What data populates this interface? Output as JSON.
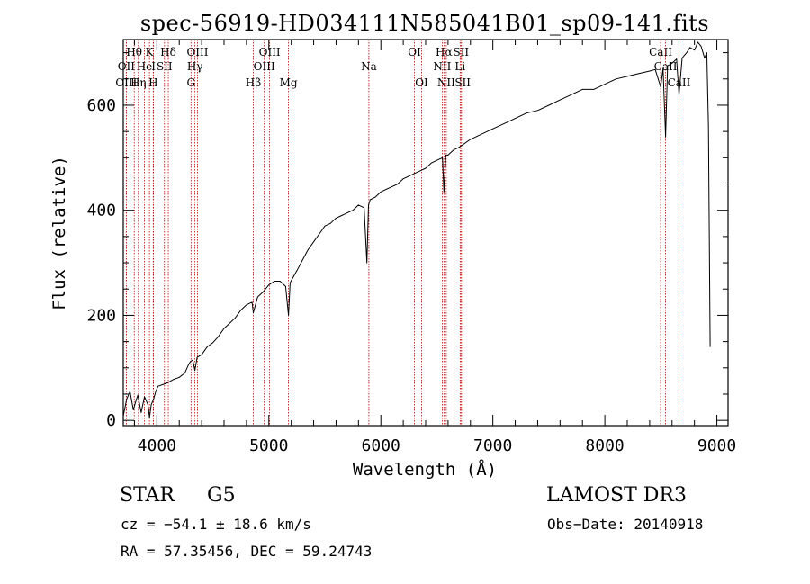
{
  "chart_data": {
    "type": "line",
    "title": "spec-56919-HD034111N585041B01_sp09-141.fits",
    "xlabel": "Wavelength (Å)",
    "ylabel": "Flux (relative)",
    "xlim": [
      3700,
      9100
    ],
    "ylim": [
      -10,
      725
    ],
    "xticks": [
      4000,
      5000,
      6000,
      7000,
      8000,
      9000
    ],
    "yticks": [
      0,
      200,
      400,
      600
    ],
    "xtick_labels": [
      "4000",
      "5000",
      "6000",
      "7000",
      "8000",
      "9000"
    ],
    "ytick_labels": [
      "0",
      "200",
      "400",
      "600"
    ],
    "series": [
      {
        "name": "spectrum",
        "x": [
          3700,
          3730,
          3760,
          3790,
          3810,
          3830,
          3860,
          3890,
          3920,
          3935,
          3950,
          3970,
          3990,
          4010,
          4050,
          4100,
          4150,
          4200,
          4250,
          4280,
          4300,
          4320,
          4340,
          4360,
          4400,
          4450,
          4500,
          4550,
          4600,
          4650,
          4700,
          4750,
          4800,
          4850,
          4861,
          4900,
          4950,
          5000,
          5050,
          5100,
          5150,
          5175,
          5190,
          5210,
          5250,
          5300,
          5350,
          5400,
          5450,
          5500,
          5550,
          5600,
          5650,
          5700,
          5750,
          5800,
          5850,
          5875,
          5890,
          5905,
          5950,
          6000,
          6050,
          6100,
          6150,
          6200,
          6250,
          6300,
          6350,
          6400,
          6450,
          6500,
          6550,
          6563,
          6580,
          6600,
          6650,
          6700,
          6800,
          6900,
          7000,
          7100,
          7200,
          7300,
          7400,
          7500,
          7600,
          7700,
          7800,
          7900,
          8000,
          8100,
          8200,
          8300,
          8400,
          8450,
          8498,
          8520,
          8542,
          8560,
          8600,
          8640,
          8662,
          8690,
          8730,
          8760,
          8800,
          8830,
          8860,
          8890,
          8910,
          8925,
          8940
        ],
        "values": [
          8,
          40,
          55,
          20,
          35,
          48,
          15,
          45,
          30,
          5,
          30,
          40,
          55,
          65,
          68,
          72,
          78,
          82,
          90,
          105,
          112,
          115,
          95,
          120,
          125,
          140,
          148,
          160,
          175,
          185,
          195,
          210,
          220,
          225,
          205,
          235,
          245,
          258,
          265,
          265,
          255,
          200,
          262,
          270,
          285,
          305,
          325,
          340,
          355,
          370,
          375,
          385,
          390,
          395,
          400,
          410,
          405,
          300,
          410,
          420,
          425,
          435,
          440,
          445,
          450,
          460,
          465,
          470,
          475,
          480,
          490,
          495,
          500,
          435,
          505,
          505,
          515,
          520,
          535,
          545,
          555,
          565,
          575,
          585,
          590,
          600,
          610,
          620,
          630,
          630,
          640,
          650,
          655,
          660,
          665,
          668,
          635,
          670,
          540,
          675,
          680,
          688,
          620,
          690,
          700,
          710,
          705,
          720,
          712,
          690,
          700,
          560,
          140
        ]
      }
    ],
    "lines": [
      {
        "label": "Hθ",
        "x": 3798,
        "row": 1
      },
      {
        "label": "OII",
        "x": 3727,
        "row": 2
      },
      {
        "label": "OIII",
        "x": 3727,
        "row": 3
      },
      {
        "label": "He",
        "x": 3889,
        "row": 2
      },
      {
        "label": "Hη",
        "x": 3835,
        "row": 3
      },
      {
        "label": "K",
        "x": 3934,
        "row": 1
      },
      {
        "label": "H",
        "x": 3968,
        "row": 3
      },
      {
        "label": "I",
        "x": 3970,
        "row": 2
      },
      {
        "label": "SII",
        "x": 4068,
        "row": 2
      },
      {
        "label": "Hδ",
        "x": 4102,
        "row": 1
      },
      {
        "label": "OIII",
        "x": 4363,
        "row": 1
      },
      {
        "label": "Hγ",
        "x": 4340,
        "row": 2
      },
      {
        "label": "G",
        "x": 4305,
        "row": 3
      },
      {
        "label": "Hβ",
        "x": 4861,
        "row": 3
      },
      {
        "label": "OIII",
        "x": 5007,
        "row": 1
      },
      {
        "label": "OIII",
        "x": 4959,
        "row": 2
      },
      {
        "label": "Mg",
        "x": 5175,
        "row": 3
      },
      {
        "label": "Na",
        "x": 5893,
        "row": 2
      },
      {
        "label": "OI",
        "x": 6300,
        "row": 1
      },
      {
        "label": "OI",
        "x": 6364,
        "row": 3
      },
      {
        "label": "Hα",
        "x": 6563,
        "row": 1
      },
      {
        "label": "SII",
        "x": 6716,
        "row": 1
      },
      {
        "label": "NII",
        "x": 6548,
        "row": 2
      },
      {
        "label": "Li",
        "x": 6708,
        "row": 2
      },
      {
        "label": "NII",
        "x": 6584,
        "row": 3
      },
      {
        "label": "SII",
        "x": 6731,
        "row": 3
      },
      {
        "label": "CaII",
        "x": 8498,
        "row": 1
      },
      {
        "label": "CaII",
        "x": 8542,
        "row": 2
      },
      {
        "label": "CaII",
        "x": 8662,
        "row": 3
      }
    ]
  },
  "info": {
    "class": "STAR",
    "subclass": "G5",
    "survey": "LAMOST DR3",
    "cz": "cz = −54.1 ± 18.6 km/s",
    "obs_date": "Obs−Date: 20140918",
    "coords": "RA =  57.35456, DEC =  59.24743"
  }
}
